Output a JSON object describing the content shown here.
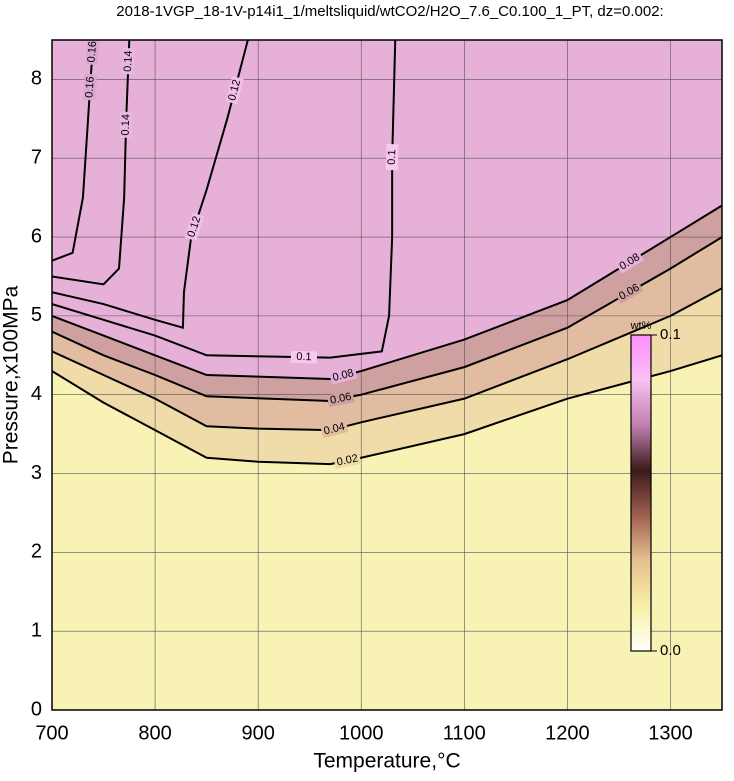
{
  "chart_data": {
    "type": "contour",
    "title": "2018-1VGP_18-1V-p14i1_1/meltsliquid/wtCO2/H2O_7.6_C0.100_1_PT, dz=0.002:",
    "xlabel": "Temperature,°C",
    "ylabel": "Pressure,x100MPa",
    "xlim": [
      700,
      1350
    ],
    "ylim": [
      0,
      8.5
    ],
    "xticks": [
      700,
      800,
      900,
      1000,
      1100,
      1200,
      1300
    ],
    "yticks": [
      0,
      1,
      2,
      3,
      4,
      5,
      6,
      7,
      8
    ],
    "grid": true,
    "background": "#f8f2b4",
    "contours": [
      {
        "level": 0.02,
        "color": "#f0dca8",
        "x": [
          700,
          750,
          800,
          850,
          900,
          970,
          1000,
          1100,
          1200,
          1300,
          1350
        ],
        "y": [
          4.3,
          3.9,
          3.55,
          3.2,
          3.15,
          3.12,
          3.2,
          3.5,
          3.95,
          4.3,
          4.5
        ]
      },
      {
        "level": 0.04,
        "color": "#e2bca0",
        "x": [
          700,
          750,
          800,
          850,
          900,
          970,
          1000,
          1100,
          1200,
          1300,
          1350
        ],
        "y": [
          4.55,
          4.25,
          3.95,
          3.6,
          3.57,
          3.55,
          3.65,
          3.95,
          4.45,
          5.0,
          5.35
        ]
      },
      {
        "level": 0.06,
        "color": "#cfa0a0",
        "x": [
          700,
          750,
          800,
          850,
          970,
          1000,
          1100,
          1200,
          1300,
          1350
        ],
        "y": [
          4.8,
          4.5,
          4.25,
          3.98,
          3.92,
          4.0,
          4.35,
          4.85,
          5.6,
          6.0
        ]
      },
      {
        "level": 0.08,
        "color": "#e6b0d8",
        "x": [
          700,
          750,
          800,
          850,
          970,
          1000,
          1100,
          1200,
          1300,
          1350
        ],
        "y": [
          5.0,
          4.75,
          4.5,
          4.25,
          4.2,
          4.3,
          4.7,
          5.2,
          6.0,
          6.4
        ]
      },
      {
        "level": 0.1,
        "color": "#f8c8ee",
        "x": [
          700,
          750,
          800,
          850,
          970,
          1020,
          1027,
          1030,
          1030,
          1033
        ],
        "y": [
          5.15,
          4.95,
          4.75,
          4.5,
          4.47,
          4.55,
          5.0,
          6.0,
          7.0,
          8.5
        ]
      },
      {
        "level": 0.12,
        "color": "#f0c0e8",
        "x": [
          700,
          750,
          800,
          827,
          828,
          835,
          850,
          870,
          890
        ],
        "y": [
          5.3,
          5.15,
          4.95,
          4.85,
          5.3,
          6.0,
          6.6,
          7.5,
          8.5
        ]
      },
      {
        "level": 0.14,
        "color": "#e8b8e0",
        "x": [
          700,
          750,
          765,
          770,
          772,
          775
        ],
        "y": [
          5.5,
          5.4,
          5.6,
          6.5,
          7.5,
          8.5
        ]
      },
      {
        "level": 0.16,
        "color": "#d8a8d0",
        "x": [
          700,
          720,
          730,
          735,
          740
        ],
        "y": [
          5.7,
          5.8,
          6.5,
          7.5,
          8.5
        ]
      }
    ],
    "colorbar": {
      "title": "wt%",
      "clim": [
        0,
        0.1
      ],
      "ticks": [
        {
          "value": 0,
          "label": "0.0"
        },
        0.1
      ],
      "colormap": [
        "#fffff8",
        "#f8f0a8",
        "#e8c090",
        "#a06050",
        "#3a1a1a",
        "#c080b0",
        "#f8c0f0",
        "#ff90ff"
      ]
    }
  }
}
